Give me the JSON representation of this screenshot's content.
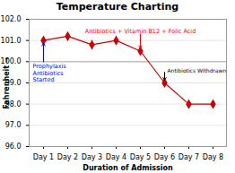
{
  "chart_data": {
    "type": "line",
    "title": "Temperature Charting",
    "x_label": "Duration of Admission",
    "y_label": "Fahrenheit",
    "categories": [
      "Day 1",
      "Day 2",
      "Day 3",
      "Day 4",
      "Day 5",
      "Day 6",
      "Day 7",
      "Day 8"
    ],
    "values": [
      101.0,
      101.2,
      100.8,
      101.0,
      100.5,
      99.0,
      98.0,
      98.0
    ],
    "color": "#cc0000",
    "marker": "diamond",
    "ylim": [
      96,
      102
    ],
    "yticks": [
      96,
      97,
      98,
      99,
      100,
      101,
      102
    ],
    "grid": true,
    "reference_line": {
      "y": 100.0,
      "color": "#aaaaaa"
    },
    "annotations": [
      {
        "text": "Prophylaxis\nAntibiotics\nStarted",
        "color": "blue",
        "x": "Day 1",
        "arrow": "up"
      },
      {
        "text": "Antibiotics + Vitamin B12 + Folic Acid",
        "color": "red",
        "x": "Day 5",
        "arrow": "down"
      },
      {
        "text": "Antibiotics Withdrawn",
        "color": "black",
        "x": "Day 6",
        "arrow": "down"
      }
    ]
  }
}
